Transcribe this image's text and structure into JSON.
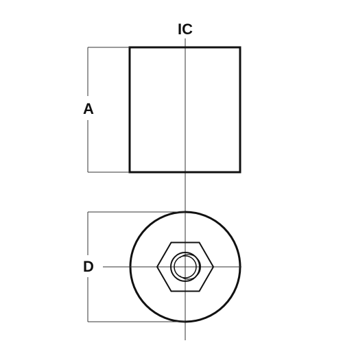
{
  "labels": {
    "center": "IC",
    "height": "A",
    "diameter": "D"
  },
  "colors": {
    "line": "#111111",
    "thin_line": "#333333",
    "background": "#ffffff"
  }
}
